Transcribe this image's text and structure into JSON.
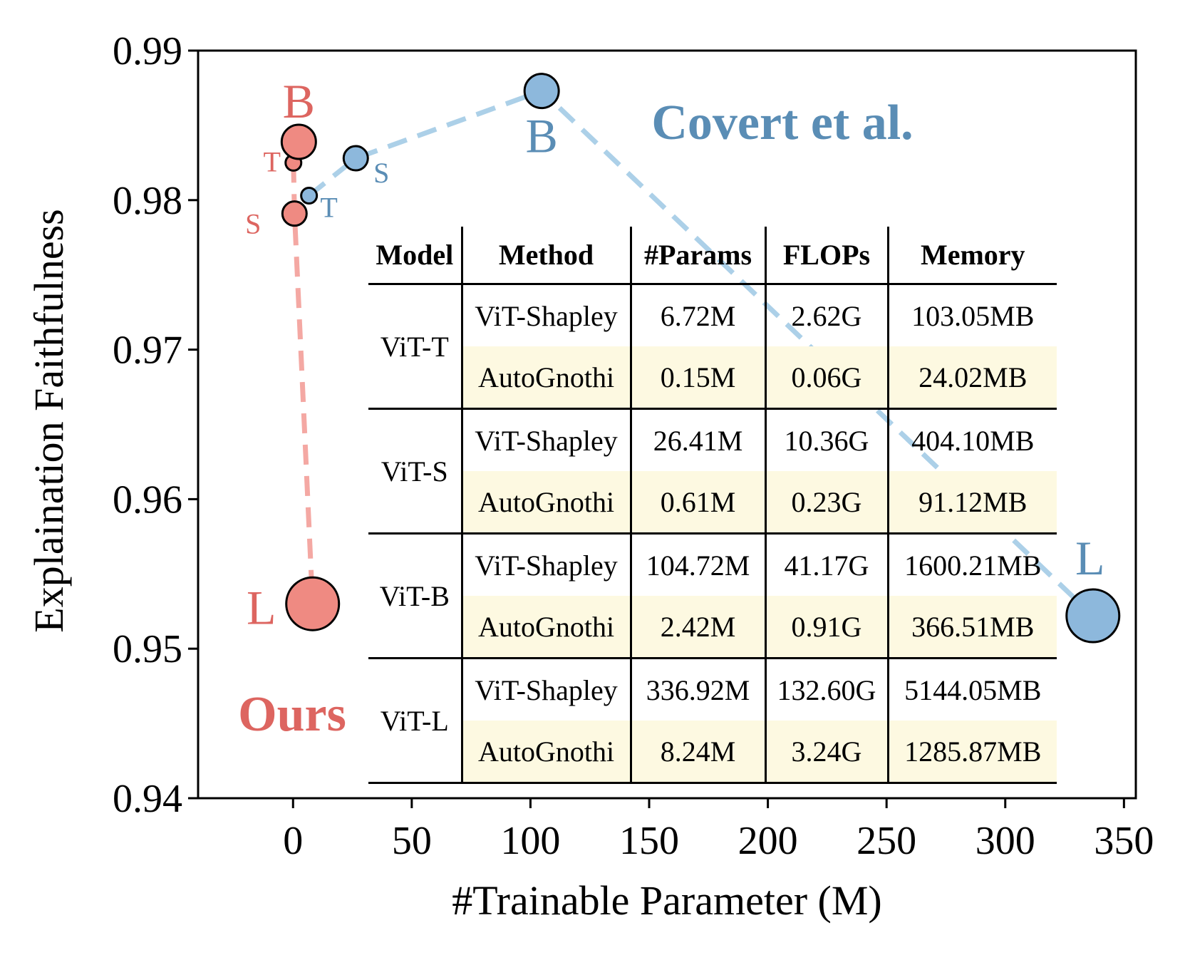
{
  "chart_data": {
    "type": "scatter",
    "xlabel": "#Trainable Parameter (M)",
    "ylabel": "Explaination Faithfulness",
    "xlim": [
      -40,
      355
    ],
    "ylim": [
      0.94,
      0.99
    ],
    "x_ticks": [
      0,
      50,
      100,
      150,
      200,
      250,
      300,
      350
    ],
    "y_ticks": [
      0.94,
      0.95,
      0.96,
      0.97,
      0.98,
      0.99
    ],
    "x_tick_labels": [
      "0",
      "50",
      "100",
      "150",
      "200",
      "250",
      "300",
      "350"
    ],
    "y_tick_labels": [
      "0.94",
      "0.95",
      "0.96",
      "0.97",
      "0.98",
      "0.99"
    ],
    "series": [
      {
        "name": "Ours",
        "color": "#ef8a82",
        "line_color": "#f4a8a3",
        "points": [
          {
            "label": "T",
            "x": 0.15,
            "y": 0.9825
          },
          {
            "label": "S",
            "x": 0.61,
            "y": 0.9791
          },
          {
            "label": "B",
            "x": 2.42,
            "y": 0.9839
          },
          {
            "label": "L",
            "x": 8.24,
            "y": 0.953
          }
        ]
      },
      {
        "name": "Covert et al.",
        "color": "#8db8dc",
        "line_color": "#acd0e8",
        "points": [
          {
            "label": "T",
            "x": 6.72,
            "y": 0.9803
          },
          {
            "label": "S",
            "x": 26.41,
            "y": 0.9828
          },
          {
            "label": "B",
            "x": 104.72,
            "y": 0.9873
          },
          {
            "label": "L",
            "x": 336.92,
            "y": 0.9522
          }
        ]
      }
    ],
    "label_colors": {
      "ours": "#dd6560",
      "covert": "#5a8db5"
    }
  },
  "table": {
    "headers": [
      "Model",
      "Method",
      "#Params",
      "FLOPs",
      "Memory"
    ],
    "groups": [
      {
        "model": "ViT-T",
        "rows": [
          {
            "method": "ViT-Shapley",
            "params": "6.72M",
            "flops": "2.62G",
            "memory": "103.05MB"
          },
          {
            "method": "AutoGnothi",
            "params": "0.15M",
            "flops": "0.06G",
            "memory": "24.02MB"
          }
        ]
      },
      {
        "model": "ViT-S",
        "rows": [
          {
            "method": "ViT-Shapley",
            "params": "26.41M",
            "flops": "10.36G",
            "memory": "404.10MB"
          },
          {
            "method": "AutoGnothi",
            "params": "0.61M",
            "flops": "0.23G",
            "memory": "91.12MB"
          }
        ]
      },
      {
        "model": "ViT-B",
        "rows": [
          {
            "method": "ViT-Shapley",
            "params": "104.72M",
            "flops": "41.17G",
            "memory": "1600.21MB"
          },
          {
            "method": "AutoGnothi",
            "params": "2.42M",
            "flops": "0.91G",
            "memory": "366.51MB"
          }
        ]
      },
      {
        "model": "ViT-L",
        "rows": [
          {
            "method": "ViT-Shapley",
            "params": "336.92M",
            "flops": "132.60G",
            "memory": "5144.05MB"
          },
          {
            "method": "AutoGnothi",
            "params": "8.24M",
            "flops": "3.24G",
            "memory": "1285.87MB"
          }
        ]
      }
    ]
  }
}
